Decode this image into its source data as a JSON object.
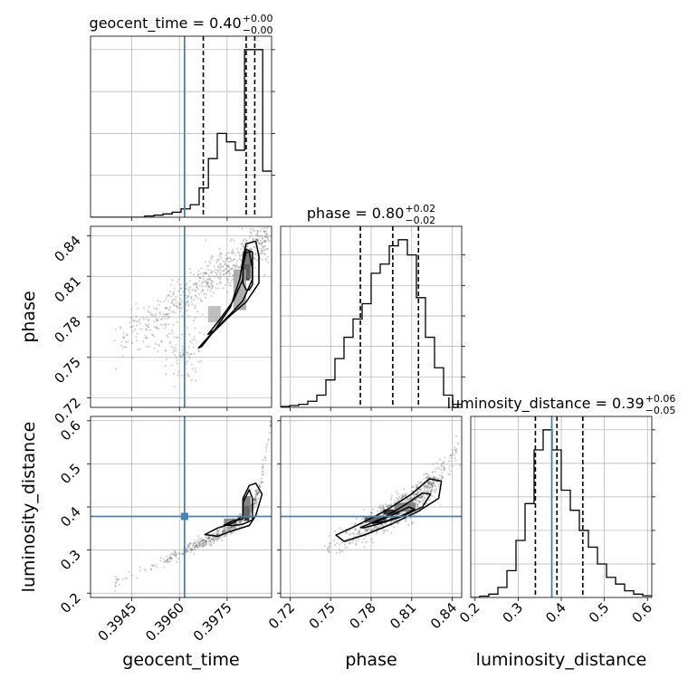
{
  "chart_data": {
    "type": "corner",
    "colors": {
      "truth": "#4682b4",
      "hist": "#000000",
      "grid": "#b0b0b0",
      "points": "#555555"
    },
    "parameters": [
      {
        "name": "geocent_time",
        "label": "geocent_time",
        "range": [
          0.3932,
          0.3989
        ],
        "ticks": [
          0.3945,
          0.396,
          0.3975
        ],
        "tick_labels": [
          "0.3945",
          "0.3960",
          "0.3975"
        ],
        "truth": 0.39616
      },
      {
        "name": "phase",
        "label": "phase",
        "range": [
          0.713,
          0.847
        ],
        "ticks": [
          0.72,
          0.75,
          0.78,
          0.81,
          0.84
        ],
        "tick_labels": [
          "0.72",
          "0.75",
          "0.78",
          "0.81",
          "0.84"
        ],
        "truth": null
      },
      {
        "name": "luminosity_distance",
        "label": "luminosity_distance",
        "range": [
          0.19,
          0.61
        ],
        "ticks": [
          0.2,
          0.3,
          0.4,
          0.5,
          0.6
        ],
        "tick_labels": [
          "0.2",
          "0.3",
          "0.4",
          "0.5",
          "0.6"
        ],
        "truth": 0.378
      }
    ],
    "diagonal_titles": [
      {
        "param": "geocent_time",
        "prefix": "geocent_time = 0.40",
        "sup": "+0.00",
        "sub": "−0.00"
      },
      {
        "param": "phase",
        "prefix": "phase = 0.80",
        "sup": "+0.02",
        "sub": "−0.02"
      },
      {
        "param": "luminosity_distance",
        "prefix": "luminosity_distance = 0.39",
        "sup": "+0.06",
        "sub": "−0.05"
      }
    ],
    "histograms": [
      {
        "param": "geocent_time",
        "bin_edges": [
          0.3932,
          0.39349,
          0.39377,
          0.39406,
          0.39434,
          0.39463,
          0.39491,
          0.3952,
          0.39548,
          0.39577,
          0.39605,
          0.39634,
          0.39662,
          0.39691,
          0.39719,
          0.39748,
          0.39776,
          0.39805,
          0.39833,
          0.39862,
          0.3989
        ],
        "counts": [
          0,
          0,
          0,
          0,
          0,
          0,
          0.3,
          0.5,
          0.8,
          1.2,
          2,
          3,
          7,
          14,
          20,
          18,
          16,
          40,
          40,
          11
        ],
        "quantiles": [
          0.39675,
          0.3981,
          0.39837
        ],
        "y_ticks": [
          10,
          20,
          30,
          40
        ]
      },
      {
        "param": "phase",
        "bin_edges": [
          0.713,
          0.7197,
          0.7264,
          0.7331,
          0.7398,
          0.7465,
          0.7532,
          0.7599,
          0.7666,
          0.7733,
          0.78,
          0.7867,
          0.7934,
          0.8001,
          0.8068,
          0.8135,
          0.8202,
          0.8269,
          0.8336,
          0.8403,
          0.847
        ],
        "counts": [
          0.3,
          0.6,
          1,
          2,
          4,
          9,
          16,
          23,
          29,
          34,
          44,
          47,
          53,
          55,
          50,
          36,
          23,
          13,
          4,
          1
        ],
        "quantiles": [
          0.772,
          0.796,
          0.815
        ],
        "y_ticks": [
          10,
          20,
          30,
          40,
          50
        ]
      },
      {
        "param": "luminosity_distance",
        "bin_edges": [
          0.19,
          0.211,
          0.232,
          0.253,
          0.274,
          0.295,
          0.316,
          0.337,
          0.358,
          0.379,
          0.4,
          0.421,
          0.442,
          0.463,
          0.484,
          0.505,
          0.526,
          0.547,
          0.568,
          0.589,
          0.61
        ],
        "counts": [
          0,
          0.4,
          1,
          3,
          8,
          17,
          28,
          44,
          50,
          44,
          32,
          26,
          20,
          15,
          10,
          6,
          4,
          2,
          1,
          0.5
        ],
        "quantiles": [
          0.34,
          0.39,
          0.45
        ],
        "y_ticks": [
          10,
          20,
          30,
          40,
          50
        ]
      }
    ],
    "pairs": [
      {
        "x_param": "geocent_time",
        "y_param": "phase",
        "scatter": {
          "shape": "band",
          "n": 620,
          "start": [
            0.394,
            0.76
          ],
          "end": [
            0.3988,
            0.838
          ],
          "spread": 0.012,
          "extra": {
            "n": 100,
            "center": [
              0.396,
              0.755
            ],
            "spread": [
              0.00035,
              0.012
            ]
          }
        },
        "blobs": [
          {
            "x": 0.39812,
            "y": 0.813,
            "w": 0.00018,
            "h": 0.012,
            "shade": 0.0
          },
          {
            "x": 0.39812,
            "y": 0.818,
            "w": 0.00028,
            "h": 0.02,
            "shade": 0.4
          },
          {
            "x": 0.3971,
            "y": 0.782,
            "w": 0.0004,
            "h": 0.012,
            "shade": 0.8
          },
          {
            "x": 0.3979,
            "y": 0.8,
            "w": 0.0004,
            "h": 0.03,
            "shade": 0.7
          }
        ],
        "contours": [
          [
            [
              0.3966,
              0.757
            ],
            [
              0.3971,
              0.77
            ],
            [
              0.3976,
              0.787
            ],
            [
              0.3979,
              0.808
            ],
            [
              0.398,
              0.823
            ],
            [
              0.3981,
              0.834
            ],
            [
              0.3984,
              0.836
            ],
            [
              0.3985,
              0.825
            ],
            [
              0.3985,
              0.805
            ],
            [
              0.3981,
              0.791
            ],
            [
              0.3976,
              0.781
            ],
            [
              0.397,
              0.767
            ],
            [
              0.3967,
              0.758
            ]
          ],
          [
            [
              0.3969,
              0.767
            ],
            [
              0.3973,
              0.779
            ],
            [
              0.3977,
              0.792
            ],
            [
              0.398,
              0.808
            ],
            [
              0.398,
              0.822
            ],
            [
              0.3981,
              0.83
            ],
            [
              0.3983,
              0.828
            ],
            [
              0.3983,
              0.808
            ],
            [
              0.398,
              0.792
            ],
            [
              0.3976,
              0.782
            ],
            [
              0.3971,
              0.77
            ]
          ],
          [
            [
              0.398,
              0.805
            ],
            [
              0.398,
              0.818
            ],
            [
              0.3981,
              0.828
            ],
            [
              0.3982,
              0.828
            ],
            [
              0.3983,
              0.816
            ],
            [
              0.3983,
              0.804
            ],
            [
              0.3982,
              0.8
            ],
            [
              0.3981,
              0.8
            ]
          ]
        ],
        "truth_point": null
      },
      {
        "x_param": "geocent_time",
        "y_param": "luminosity_distance",
        "scatter": {
          "shape": "curve",
          "n": 560,
          "points": [
            [
              0.394,
              0.225
            ],
            [
              0.3955,
              0.275
            ],
            [
              0.3965,
              0.31
            ],
            [
              0.3975,
              0.345
            ],
            [
              0.3982,
              0.385
            ],
            [
              0.3985,
              0.44
            ],
            [
              0.3989,
              0.6
            ]
          ],
          "spread": 0.012
        },
        "blobs": [
          {
            "x": 0.39812,
            "y": 0.385,
            "w": 0.00016,
            "h": 0.035,
            "shade": 0.05
          },
          {
            "x": 0.39812,
            "y": 0.4,
            "w": 0.00024,
            "h": 0.05,
            "shade": 0.45
          },
          {
            "x": 0.3976,
            "y": 0.367,
            "w": 0.0004,
            "h": 0.012,
            "shade": 0.5
          }
        ],
        "contours": [
          [
            [
              0.3968,
              0.336
            ],
            [
              0.3972,
              0.351
            ],
            [
              0.3977,
              0.363
            ],
            [
              0.398,
              0.38
            ],
            [
              0.398,
              0.42
            ],
            [
              0.3982,
              0.45
            ],
            [
              0.3984,
              0.455
            ],
            [
              0.3986,
              0.43
            ],
            [
              0.3984,
              0.38
            ],
            [
              0.3982,
              0.357
            ],
            [
              0.3976,
              0.343
            ],
            [
              0.3972,
              0.332
            ]
          ],
          [
            [
              0.3974,
              0.358
            ],
            [
              0.3977,
              0.368
            ],
            [
              0.398,
              0.372
            ],
            [
              0.398,
              0.41
            ],
            [
              0.3982,
              0.44
            ],
            [
              0.3983,
              0.42
            ],
            [
              0.3983,
              0.37
            ],
            [
              0.398,
              0.36
            ],
            [
              0.3977,
              0.357
            ]
          ]
        ],
        "truth_point": [
          0.39616,
          0.378
        ]
      },
      {
        "x_param": "phase",
        "y_param": "luminosity_distance",
        "scatter": {
          "shape": "curve",
          "n": 800,
          "points": [
            [
              0.748,
              0.305
            ],
            [
              0.765,
              0.33
            ],
            [
              0.78,
              0.36
            ],
            [
              0.795,
              0.385
            ],
            [
              0.81,
              0.41
            ],
            [
              0.822,
              0.445
            ],
            [
              0.83,
              0.475
            ],
            [
              0.843,
              0.525
            ]
          ],
          "spread": 0.03
        },
        "blobs": [
          {
            "x": 0.795,
            "y": 0.388,
            "w": 0.012,
            "h": 0.012,
            "shade": 0.05
          },
          {
            "x": 0.783,
            "y": 0.37,
            "w": 0.016,
            "h": 0.012,
            "shade": 0.3
          },
          {
            "x": 0.805,
            "y": 0.4,
            "w": 0.016,
            "h": 0.02,
            "shade": 0.5
          }
        ],
        "contours": [
          [
            [
              0.754,
              0.335
            ],
            [
              0.768,
              0.355
            ],
            [
              0.79,
              0.39
            ],
            [
              0.81,
              0.43
            ],
            [
              0.823,
              0.465
            ],
            [
              0.832,
              0.46
            ],
            [
              0.83,
              0.42
            ],
            [
              0.815,
              0.39
            ],
            [
              0.795,
              0.36
            ],
            [
              0.775,
              0.335
            ],
            [
              0.76,
              0.32
            ]
          ],
          [
            [
              0.772,
              0.352
            ],
            [
              0.79,
              0.376
            ],
            [
              0.805,
              0.405
            ],
            [
              0.818,
              0.432
            ],
            [
              0.824,
              0.43
            ],
            [
              0.818,
              0.4
            ],
            [
              0.803,
              0.378
            ],
            [
              0.785,
              0.36
            ],
            [
              0.775,
              0.352
            ]
          ],
          [
            [
              0.781,
              0.362
            ],
            [
              0.795,
              0.38
            ],
            [
              0.808,
              0.4
            ],
            [
              0.812,
              0.395
            ],
            [
              0.803,
              0.38
            ],
            [
              0.79,
              0.366
            ]
          ]
        ],
        "truth_point": null
      }
    ],
    "axis_labels": [
      "geocent_time",
      "phase",
      "luminosity_distance"
    ]
  }
}
